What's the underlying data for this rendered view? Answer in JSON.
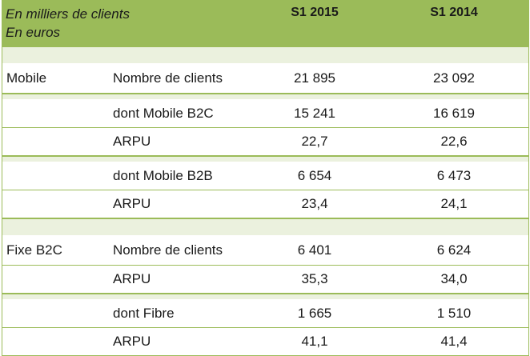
{
  "header": {
    "label_line1": "En milliers de clients",
    "label_line2": "En euros",
    "col1": "S1 2015",
    "col2": "S1 2014"
  },
  "rows": [
    {
      "section": "Mobile",
      "metric": "Nombre de clients",
      "v1": "21 895",
      "v2": "23 092"
    },
    {
      "section": "",
      "metric": "dont Mobile B2C",
      "v1": "15 241",
      "v2": "16 619"
    },
    {
      "section": "",
      "metric": "ARPU",
      "v1": "22,7",
      "v2": "22,6"
    },
    {
      "section": "",
      "metric": "dont Mobile B2B",
      "v1": "6 654",
      "v2": "6 473"
    },
    {
      "section": "",
      "metric": "ARPU",
      "v1": "23,4",
      "v2": "24,1"
    },
    {
      "section": "Fixe B2C",
      "metric": "Nombre de clients",
      "v1": "6 401",
      "v2": "6 624"
    },
    {
      "section": "",
      "metric": "ARPU",
      "v1": "35,3",
      "v2": "34,0"
    },
    {
      "section": "",
      "metric": "dont Fibre",
      "v1": "1 665",
      "v2": "1 510"
    },
    {
      "section": "",
      "metric": "ARPU",
      "v1": "41,1",
      "v2": "41,4"
    }
  ],
  "colors": {
    "header_bg": "#9bbb59",
    "separator_bg": "#ebf1de",
    "border": "#9bbb59"
  }
}
